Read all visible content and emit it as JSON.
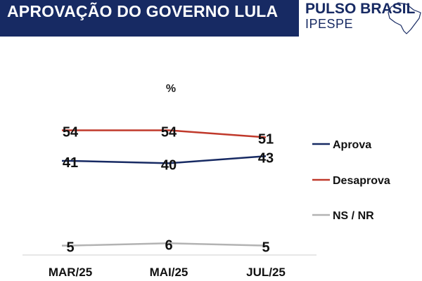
{
  "header": {
    "title": "APROVAÇÃO DO GOVERNO LULA",
    "brand_name": "PULSO BRASIL",
    "brand_sub": "IPESPE",
    "brand_color": "#172a63",
    "map_icon": "brazil-map-outline-icon"
  },
  "chart_data": {
    "type": "line",
    "unit_label": "%",
    "categories": [
      "MAR/25",
      "MAI/25",
      "JUL/25"
    ],
    "ylim": [
      0,
      60
    ],
    "grid": false,
    "legend_placement": "right",
    "series": [
      {
        "name": "Desaprova",
        "values": [
          54,
          54,
          51
        ],
        "color": "#c0392b"
      },
      {
        "name": "Aprova",
        "values": [
          41,
          40,
          43
        ],
        "color": "#172a63"
      },
      {
        "name": "NS / NR",
        "values": [
          5,
          6,
          5
        ],
        "color": "#b3b3b3"
      }
    ],
    "legend_order": [
      "Aprova",
      "Desaprova",
      "NS / NR"
    ]
  }
}
